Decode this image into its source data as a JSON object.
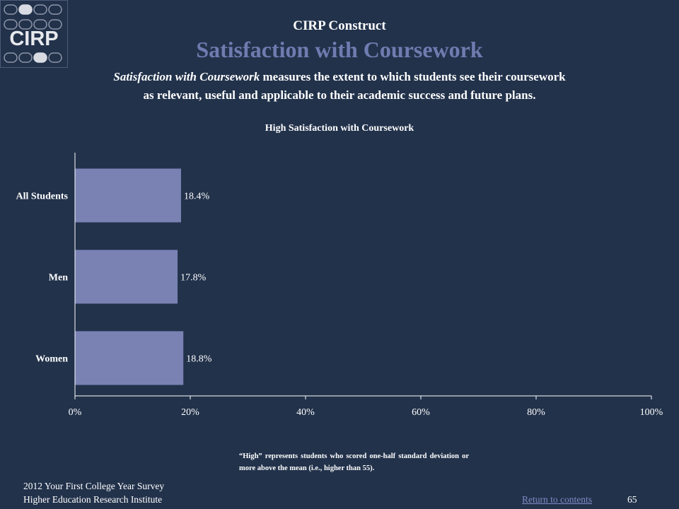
{
  "logo": {
    "text": "CIRP"
  },
  "header": {
    "construct_label": "CIRP Construct",
    "title": "Satisfaction with Coursework",
    "description_em": "Satisfaction with Coursework",
    "description_rest": " measures the extent to which students see their coursework",
    "description_line2": "as relevant, useful and applicable to their academic success and future plans."
  },
  "chart_data": {
    "type": "bar",
    "orientation": "horizontal",
    "title": "High Satisfaction with Coursework",
    "categories": [
      "All Students",
      "Men",
      "Women"
    ],
    "values": [
      18.4,
      17.8,
      18.8
    ],
    "value_labels": [
      "18.4%",
      "17.8%",
      "18.8%"
    ],
    "xlim": [
      0,
      100
    ],
    "x_ticks": [
      0,
      20,
      40,
      60,
      80,
      100
    ],
    "x_tick_labels": [
      "0%",
      "20%",
      "40%",
      "60%",
      "80%",
      "100%"
    ],
    "grid": false,
    "bar_color": "#7a82b4"
  },
  "footnote": "“High” represents students who scored one-half standard deviation or more above the mean (i.e., higher than 55).",
  "footer": {
    "survey_name": "2012 Your First College Year Survey",
    "institute_name": "Higher Education Research Institute",
    "return_link": "Return to contents",
    "page_number": "65"
  }
}
